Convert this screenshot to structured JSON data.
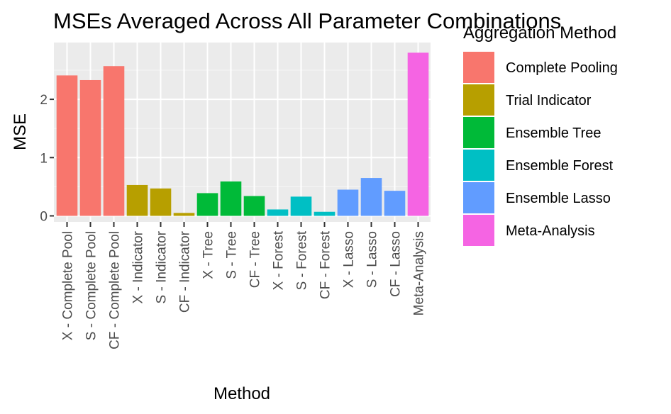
{
  "chart_data": {
    "type": "bar",
    "title": "MSEs Averaged Across All Parameter Combinations",
    "xlabel": "Method",
    "ylabel": "MSE",
    "ylim": [
      0,
      2.9
    ],
    "yticks": [
      0,
      1,
      2
    ],
    "grid": true,
    "legend": {
      "title": "Aggregation Method",
      "placement": "right",
      "entries": [
        {
          "name": "Complete Pooling",
          "color": "#F8766D"
        },
        {
          "name": "Trial Indicator",
          "color": "#B79F00"
        },
        {
          "name": "Ensemble Tree",
          "color": "#00BA38"
        },
        {
          "name": "Ensemble Forest",
          "color": "#00BFC4"
        },
        {
          "name": "Ensemble Lasso",
          "color": "#619CFF"
        },
        {
          "name": "Meta-Analysis",
          "color": "#F564E3"
        }
      ]
    },
    "bars": [
      {
        "category": "X - Complete Pool",
        "value": 2.41,
        "group": 0
      },
      {
        "category": "S - Complete Pool",
        "value": 2.33,
        "group": 0
      },
      {
        "category": "CF - Complete Pool",
        "value": 2.57,
        "group": 0
      },
      {
        "category": "X - Indicator",
        "value": 0.53,
        "group": 1
      },
      {
        "category": "S - Indicator",
        "value": 0.47,
        "group": 1
      },
      {
        "category": "CF - Indicator",
        "value": 0.05,
        "group": 1
      },
      {
        "category": "X - Tree",
        "value": 0.39,
        "group": 2
      },
      {
        "category": "S - Tree",
        "value": 0.59,
        "group": 2
      },
      {
        "category": "CF - Tree",
        "value": 0.34,
        "group": 2
      },
      {
        "category": "X - Forest",
        "value": 0.11,
        "group": 3
      },
      {
        "category": "S - Forest",
        "value": 0.33,
        "group": 3
      },
      {
        "category": "CF - Forest",
        "value": 0.07,
        "group": 3
      },
      {
        "category": "X - Lasso",
        "value": 0.45,
        "group": 4
      },
      {
        "category": "S - Lasso",
        "value": 0.65,
        "group": 4
      },
      {
        "category": "CF - Lasso",
        "value": 0.43,
        "group": 4
      },
      {
        "category": "Meta-Analysis",
        "value": 2.8,
        "group": 5
      }
    ]
  }
}
